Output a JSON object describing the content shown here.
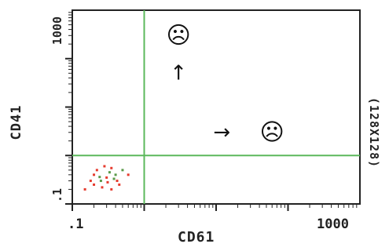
{
  "chart_data": {
    "type": "scatter",
    "title": "",
    "xlabel": "CD61",
    "ylabel": "CD41",
    "right_label": "(128X128)",
    "x_scale": "log",
    "y_scale": "log",
    "xlim": [
      0.1,
      1000
    ],
    "ylim": [
      0.1,
      1000
    ],
    "x_tick_labels": [
      ".1",
      "1000"
    ],
    "y_tick_labels": [
      ".1",
      "1000"
    ],
    "gates": {
      "x": 1,
      "y": 1
    },
    "series": [
      {
        "points": [
          [
            0.15,
            0.2
          ],
          [
            0.2,
            0.25
          ],
          [
            0.25,
            0.3
          ],
          [
            0.3,
            0.35
          ],
          [
            0.35,
            0.2
          ],
          [
            0.4,
            0.4
          ],
          [
            0.22,
            0.5
          ],
          [
            0.28,
            0.6
          ],
          [
            0.33,
            0.45
          ],
          [
            0.18,
            0.3
          ],
          [
            0.45,
            0.25
          ],
          [
            0.5,
            0.5
          ],
          [
            0.26,
            0.22
          ],
          [
            0.31,
            0.28
          ],
          [
            0.38,
            0.33
          ],
          [
            0.42,
            0.3
          ],
          [
            0.2,
            0.4
          ],
          [
            0.24,
            0.36
          ],
          [
            0.35,
            0.55
          ],
          [
            0.6,
            0.4
          ]
        ]
      }
    ],
    "annotations": [
      {
        "symbol": "☹",
        "x": 3,
        "y": 300
      },
      {
        "symbol": "↑",
        "x": 3,
        "y": 50
      },
      {
        "symbol": "→",
        "x": 12,
        "y": 3
      },
      {
        "symbol": "☹",
        "x": 60,
        "y": 3
      }
    ],
    "colors": {
      "gate": "#5cb85c",
      "points": "#e63b2e",
      "points_alt": "#5a9a4a",
      "axis": "#222222"
    }
  }
}
